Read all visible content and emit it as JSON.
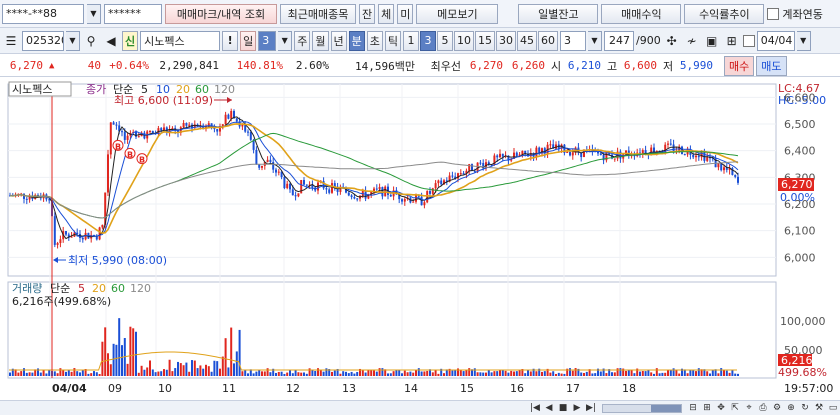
{
  "toolbar1": {
    "account": "****-**88",
    "password": "******",
    "tab_trades": "매매마크/내역 조회",
    "recent_trades": "최근매매종목",
    "balance": "잔",
    "execution": "체",
    "unexecuted": "미",
    "memo": "메모보기",
    "daily_balance": "일별잔고",
    "trade_profit": "매매수익",
    "return_trend": "수익률추이",
    "account_link": "계좌연동"
  },
  "toolbar2": {
    "code": "025320",
    "badge": "신",
    "stock_name": "시노펙스",
    "period_label": "일",
    "period_value": "3",
    "period_units": [
      "주",
      "월",
      "년"
    ],
    "minute": "분",
    "tick_seconds": "초",
    "tick": "틱",
    "intervals": [
      "1",
      "3",
      "5",
      "10",
      "15",
      "30",
      "45",
      "60"
    ],
    "active_interval": "3",
    "interval_select": "3",
    "count": "247",
    "count_total": "/900",
    "date": "04/04"
  },
  "quote": {
    "price": "6,270",
    "arrow": "▲",
    "change": "40",
    "change_pct": "+0.64%",
    "volume": "2,290,841",
    "volume_ratio": "140.81%",
    "turnover": "2.60%",
    "amount": "14,596백만",
    "best_label": "최우선",
    "best_ask": "6,270",
    "best_bid": "6,260",
    "open_label": "시",
    "open": "6,210",
    "high_label": "고",
    "high": "6,600",
    "low_label": "저",
    "low": "5,990",
    "buy": "매수",
    "sell": "매도"
  },
  "price_panel": {
    "stock_tag": "시노펙스",
    "legend_title": "종가",
    "legend_ma_label": "단순",
    "legend_ma": [
      "5",
      "10",
      "20",
      "60",
      "120"
    ],
    "high_annotation": "최고 6,600 (11:09)",
    "low_annotation": "최저 5,990 (08:00)",
    "lc": "LC:4.67",
    "hc": "HC:-5.00",
    "current_tag": "6,270",
    "pct_tag": "0.00%",
    "yticks": [
      "6,600",
      "6,500",
      "6,400",
      "6,300",
      "6,200",
      "6,100",
      "6,000"
    ]
  },
  "volume_panel": {
    "legend_title": "거래량",
    "legend_ma_label": "단순",
    "legend_ma": [
      "5",
      "20",
      "60",
      "120"
    ],
    "value_line": "6,216주(499.68%)",
    "yticks": [
      "100,000",
      "50,000"
    ],
    "current_tag": "6,216",
    "pct_tag": "499.68%"
  },
  "xaxis": {
    "labels": [
      "04/04",
      "09",
      "10",
      "11",
      "12",
      "13",
      "14",
      "15",
      "16",
      "17",
      "18"
    ],
    "time": "19:57:00"
  },
  "colors": {
    "up": "#e0261f",
    "down": "#1a4fd6",
    "ma5": "#222222",
    "ma10": "#1a4fd6",
    "ma20": "#e0a21a",
    "ma60": "#2a9a3a",
    "ma120": "#8a8a8a"
  }
}
